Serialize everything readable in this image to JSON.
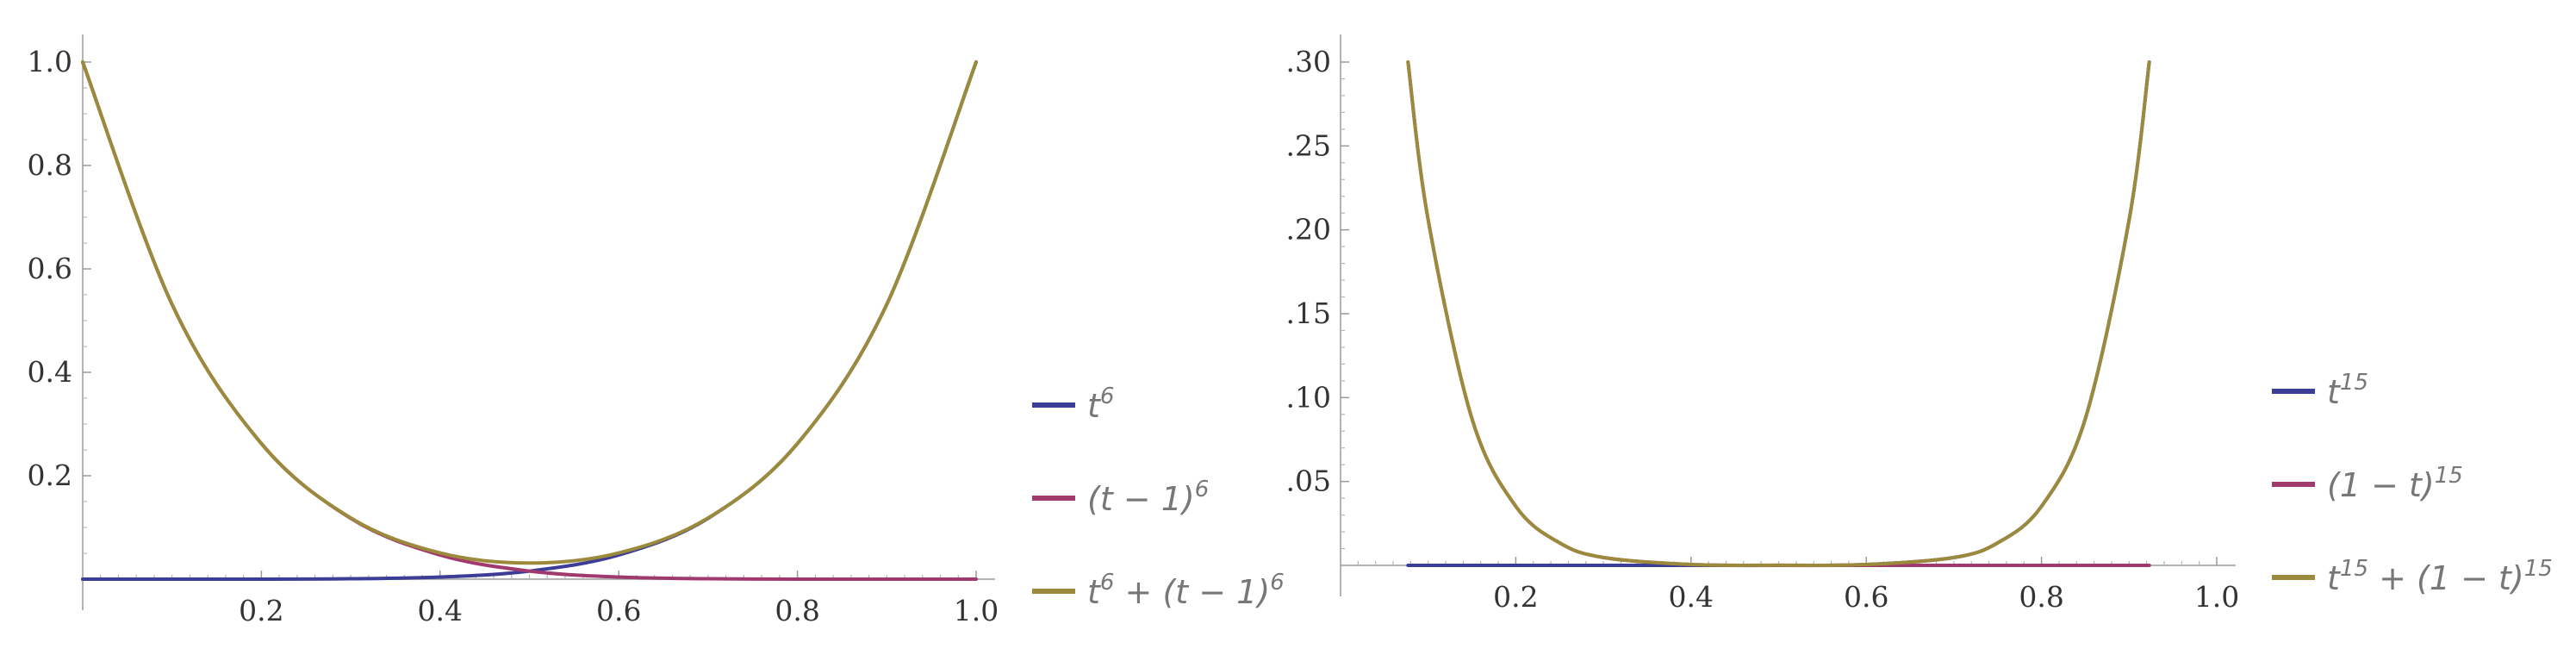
{
  "chart_data": [
    {
      "type": "line",
      "title": "",
      "xlabel": "",
      "ylabel": "",
      "xlim": [
        0,
        1
      ],
      "ylim": [
        0,
        1
      ],
      "x_ticks": [
        0.2,
        0.4,
        0.6,
        0.8,
        1.0
      ],
      "x_tick_labels": [
        "0.2",
        "0.4",
        "0.6",
        "0.8",
        "1.0"
      ],
      "y_ticks": [
        0.2,
        0.4,
        0.6,
        0.8,
        1.0
      ],
      "y_tick_labels": [
        "0.2",
        "0.4",
        "0.6",
        "0.8",
        "1.0"
      ],
      "grid": false,
      "legend_position": "right",
      "x": [
        0,
        0.1,
        0.2,
        0.3,
        0.4,
        0.5,
        0.6,
        0.7,
        0.8,
        0.9,
        1.0
      ],
      "series": [
        {
          "name": "t^6",
          "legend": {
            "base": "t",
            "sup": "6",
            "after": ""
          },
          "color": "#3b3d96",
          "values": [
            0,
            1e-06,
            6.4e-05,
            0.000729,
            0.004096,
            0.015625,
            0.046656,
            0.117649,
            0.262144,
            0.531441,
            1.0
          ]
        },
        {
          "name": "(t - 1)^6",
          "legend": {
            "base": "(t − 1)",
            "sup": "6",
            "after": ""
          },
          "color": "#a03a6e",
          "values": [
            1.0,
            0.531441,
            0.262144,
            0.117649,
            0.046656,
            0.015625,
            0.004096,
            0.000729,
            6.4e-05,
            1e-06,
            0
          ]
        },
        {
          "name": "t^6 + (t - 1)^6",
          "legend": {
            "base": "t",
            "sup": "6",
            "after": " + (t − 1)",
            "sup2": "6"
          },
          "color": "#9c8a3c",
          "values": [
            1.0,
            0.531442,
            0.262208,
            0.118378,
            0.050752,
            0.03125,
            0.050752,
            0.118378,
            0.262208,
            0.531442,
            1.0
          ]
        }
      ]
    },
    {
      "type": "line",
      "title": "",
      "xlabel": "",
      "ylabel": "",
      "xlim": [
        0,
        1
      ],
      "ylim": [
        0,
        0.3
      ],
      "x_ticks": [
        0.2,
        0.4,
        0.6,
        0.8,
        1.0
      ],
      "x_tick_labels": [
        "0.2",
        "0.4",
        "0.6",
        "0.8",
        "1.0"
      ],
      "y_ticks": [
        0.05,
        0.1,
        0.15,
        0.2,
        0.25,
        0.3
      ],
      "y_tick_labels": [
        "0.05",
        "0.10",
        "0.15",
        "0.20",
        "0.25",
        "0.30"
      ],
      "grid": false,
      "legend_position": "right",
      "x": [
        0.077,
        0.1,
        0.15,
        0.2,
        0.25,
        0.3,
        0.4,
        0.5,
        0.6,
        0.7,
        0.75,
        0.8,
        0.85,
        0.9,
        0.923
      ],
      "series": [
        {
          "name": "t^15",
          "legend": {
            "base": "t",
            "sup": "15",
            "after": ""
          },
          "color": "#3b3d96",
          "values": [
            0,
            0,
            0,
            0,
            0,
            0,
            0,
            0,
            0.0005,
            0.0047,
            0.0134,
            0.0352,
            0.0874,
            0.2059,
            0.3
          ]
        },
        {
          "name": "(1 - t)^15",
          "legend": {
            "base": "(1 − t)",
            "sup": "15",
            "after": ""
          },
          "color": "#a03a6e",
          "values": [
            0.3,
            0.2059,
            0.0874,
            0.0352,
            0.0134,
            0.0047,
            0.0005,
            0,
            0,
            0,
            0,
            0,
            0,
            0,
            0
          ]
        },
        {
          "name": "t^15 + (1 - t)^15",
          "legend": {
            "base": "t",
            "sup": "15",
            "after": " + (1 − t)",
            "sup2": "15"
          },
          "color": "#9c8a3c",
          "values": [
            0.3,
            0.2059,
            0.0874,
            0.0352,
            0.0134,
            0.0047,
            0.0005,
            0.0001,
            0.0005,
            0.0047,
            0.0134,
            0.0352,
            0.0874,
            0.2059,
            0.3
          ]
        }
      ]
    }
  ]
}
